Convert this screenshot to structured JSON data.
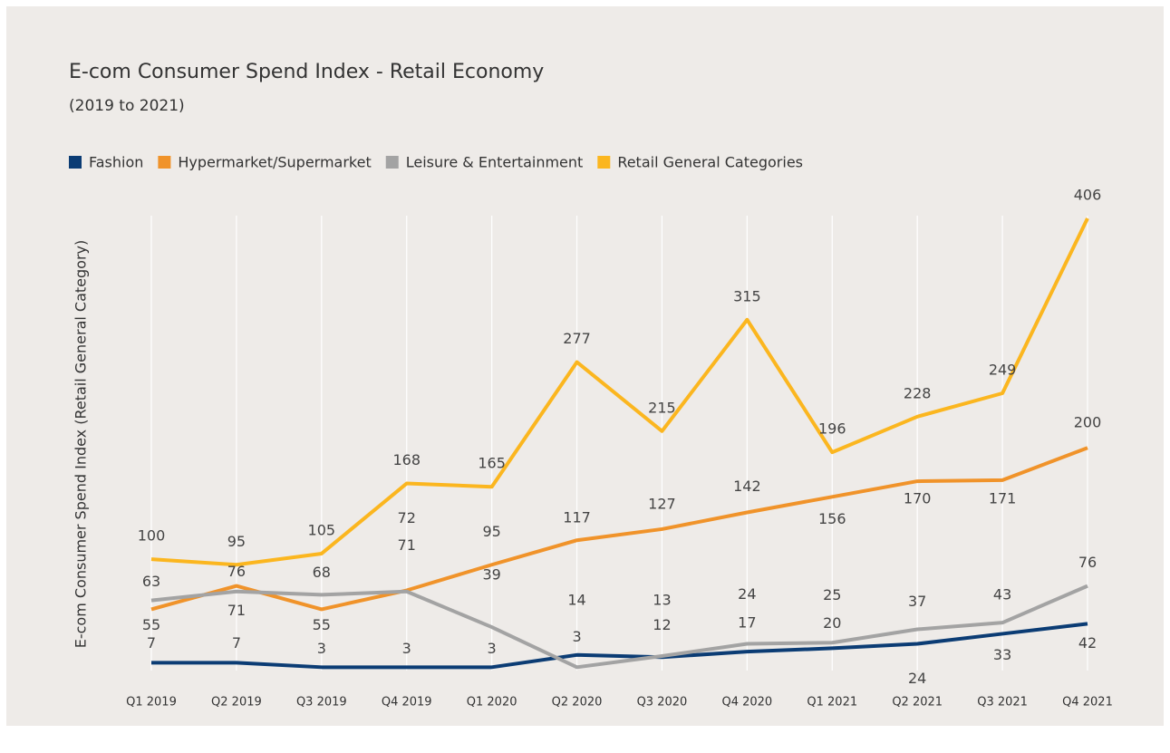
{
  "chart_data": {
    "type": "line",
    "title": "E-com Consumer Spend Index - Retail Economy",
    "subtitle": "(2019 to 2021)",
    "y_label": "E-com Consumer Spend Index (Retail General Category)",
    "categories": [
      "Q1 2019",
      "Q2 2019",
      "Q3 2019",
      "Q4 2019",
      "Q1 2020",
      "Q2 2020",
      "Q3 2020",
      "Q4 2020",
      "Q1 2021",
      "Q2 2021",
      "Q3 2021",
      "Q4 2021"
    ],
    "ylim": [
      0,
      415
    ],
    "grid": true,
    "legend": "top-left",
    "series": [
      {
        "name": "Fashion",
        "color": "#0b3c74",
        "values": [
          7,
          7,
          3,
          3,
          3,
          14,
          12,
          17,
          20,
          24,
          33,
          42
        ]
      },
      {
        "name": "Hypermarket/Supermarket",
        "color": "#f0932a",
        "values": [
          55,
          76,
          55,
          72,
          95,
          117,
          127,
          142,
          156,
          170,
          171,
          200
        ]
      },
      {
        "name": "Leisure & Entertainment",
        "color": "#a3a3a3",
        "values": [
          63,
          71,
          68,
          71,
          39,
          3,
          13,
          24,
          25,
          37,
          43,
          76
        ]
      },
      {
        "name": "Retail General Categories",
        "color": "#fbb61f",
        "values": [
          100,
          95,
          105,
          168,
          165,
          277,
          215,
          315,
          196,
          228,
          249,
          406
        ]
      }
    ]
  }
}
